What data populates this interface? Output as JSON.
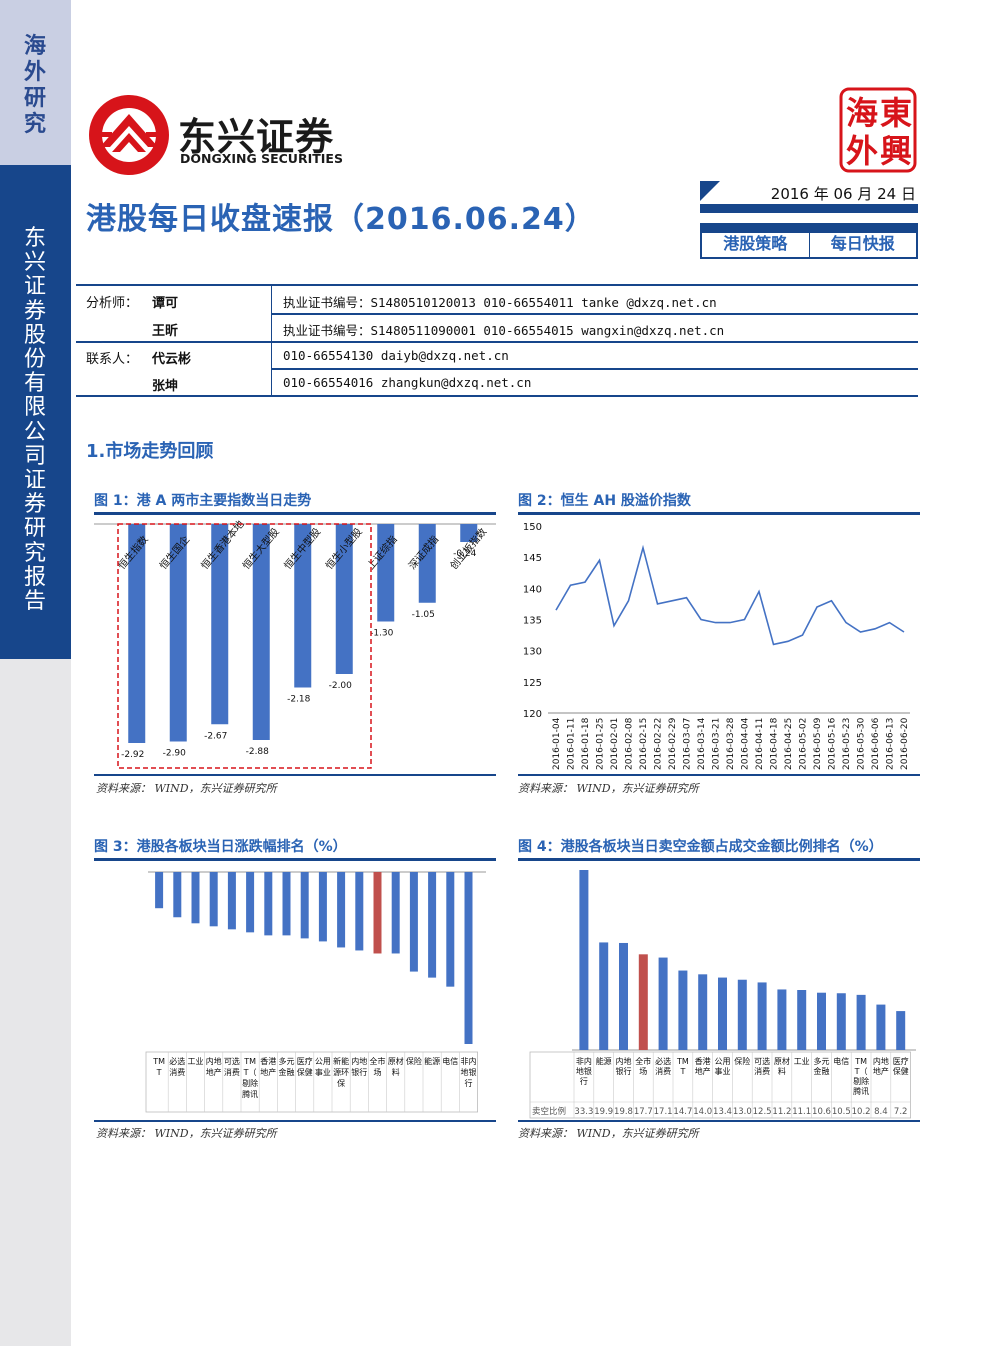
{
  "sidebar": {
    "top_label": "海外研究",
    "company_label": "东兴证券股份有限公司证券研究报告"
  },
  "header": {
    "logo_cn": "东兴证券",
    "logo_en": "DONGXING SECURITIES",
    "seal_chars": [
      "海",
      "東",
      "外",
      "興"
    ],
    "title": "港股每日收盘速报（2016.06.24）",
    "date": "2016 年 06 月 24 日",
    "category_1": "港股策略",
    "category_2": "每日快报"
  },
  "analysts": {
    "analyst_label": "分析师：",
    "contact_label": "联系人：",
    "rows": [
      {
        "name": "谭可",
        "info": "执业证书编号：S1480510120013    010-66554011    tanke @dxzq.net.cn"
      },
      {
        "name": "王昕",
        "info": "执业证书编号：S1480511090001    010-66554015    wangxin@dxzq.net.cn"
      },
      {
        "name": "代云彬",
        "info": "010-66554130   daiyb@dxzq.net.cn"
      },
      {
        "name": "张坤",
        "info": "010-66554016   zhangkun@dxzq.net.cn"
      }
    ]
  },
  "section_1": "1.市场走势回顾",
  "source_text": "资料来源：  WIND，东兴证券研究所",
  "figures": {
    "fig1": {
      "title": "图 1：港 A 两市主要指数当日走势",
      "chart_data": {
        "type": "bar",
        "categories": [
          "恒生指数",
          "恒生国企",
          "恒生香港本地",
          "恒生大型股",
          "恒生中型股",
          "恒生小型股",
          "上证综指",
          "深证成指",
          "创业板指数"
        ],
        "values": [
          -2.92,
          -2.9,
          -2.67,
          -2.88,
          -2.18,
          -2.0,
          -1.3,
          -1.05,
          -0.24
        ],
        "value_labels": [
          "-2.92",
          "-2.90",
          "-2.67",
          "-2.88",
          "-2.18",
          "-2.00",
          "-1.30",
          "-1.05",
          "-0.24"
        ],
        "ylim": [
          -3.0,
          0
        ],
        "color": "#4472c4",
        "highlight_box": "dashed red around first six bars"
      }
    },
    "fig2": {
      "title": "图 2：恒生 AH 股溢价指数",
      "chart_data": {
        "type": "line",
        "x": [
          "2016-01-04",
          "2016-01-11",
          "2016-01-18",
          "2016-01-25",
          "2016-02-01",
          "2016-02-08",
          "2016-02-15",
          "2016-02-22",
          "2016-02-29",
          "2016-03-07",
          "2016-03-14",
          "2016-03-21",
          "2016-03-28",
          "2016-04-04",
          "2016-04-11",
          "2016-04-18",
          "2016-04-25",
          "2016-05-02",
          "2016-05-09",
          "2016-05-16",
          "2016-05-23",
          "2016-05-30",
          "2016-06-06",
          "2016-06-13",
          "2016-06-20"
        ],
        "y": [
          136.5,
          140.5,
          141.0,
          144.5,
          134.0,
          138.0,
          146.5,
          137.5,
          138.0,
          138.5,
          135.0,
          134.5,
          134.5,
          135.0,
          139.5,
          131.0,
          131.5,
          132.5,
          137.0,
          138.0,
          134.5,
          133.0,
          133.5,
          134.5,
          133.0
        ],
        "yticks": [
          "150",
          "145",
          "140",
          "135",
          "130",
          "125",
          "120"
        ],
        "ylim": [
          120,
          150
        ],
        "color": "#4472c4"
      }
    },
    "fig3": {
      "title": "图 3：港股各板块当日涨跌幅排名（%）",
      "chart_data": {
        "type": "bar",
        "categories": [
          "TMT",
          "必选消费",
          "工业",
          "内地地产",
          "可选消费",
          "TMT（剔除腾讯）",
          "香港地产",
          "多元金融",
          "医疗保健",
          "公用事业",
          "新能源环保",
          "内地银行",
          "全市场",
          "原材料",
          "保险",
          "能源",
          "电信",
          "非内地银行"
        ],
        "values": [
          -1.2,
          -1.5,
          -1.7,
          -1.8,
          -1.9,
          -2.0,
          -2.1,
          -2.1,
          -2.2,
          -2.3,
          -2.5,
          -2.6,
          -2.7,
          -2.7,
          -3.3,
          -3.5,
          -3.8,
          -5.7
        ],
        "highlight_index": 12,
        "color": "#4472c4",
        "highlight_color": "#c0504d"
      }
    },
    "fig4": {
      "title": "图 4：港股各板块当日卖空金额占成交金额比例排名（%）",
      "chart_data": {
        "type": "bar",
        "categories": [
          "非内地银行",
          "能源",
          "内地银行",
          "全市场",
          "必选消费",
          "TMT",
          "香港地产",
          "公用事业",
          "保险",
          "可选消费",
          "原材料",
          "工业",
          "多元金融",
          "电信",
          "TMT（剔除腾讯）",
          "内地地产",
          "医疗保健"
        ],
        "values": [
          33.3,
          19.9,
          19.8,
          17.7,
          17.1,
          14.7,
          14.0,
          13.4,
          13.0,
          12.5,
          11.2,
          11.1,
          10.6,
          10.5,
          10.2,
          8.4,
          7.2
        ],
        "value_labels": [
          "33.3",
          "19.9",
          "19.8",
          "17.7",
          "17.1",
          "14.7",
          "14.0",
          "13.4",
          "13.0",
          "12.5",
          "11.2",
          "11.1",
          "10.6",
          "10.5",
          "10.2",
          "8.4",
          "7.2"
        ],
        "row_label": "卖空比例",
        "highlight_index": 3,
        "color": "#4472c4",
        "highlight_color": "#c0504d"
      }
    }
  }
}
